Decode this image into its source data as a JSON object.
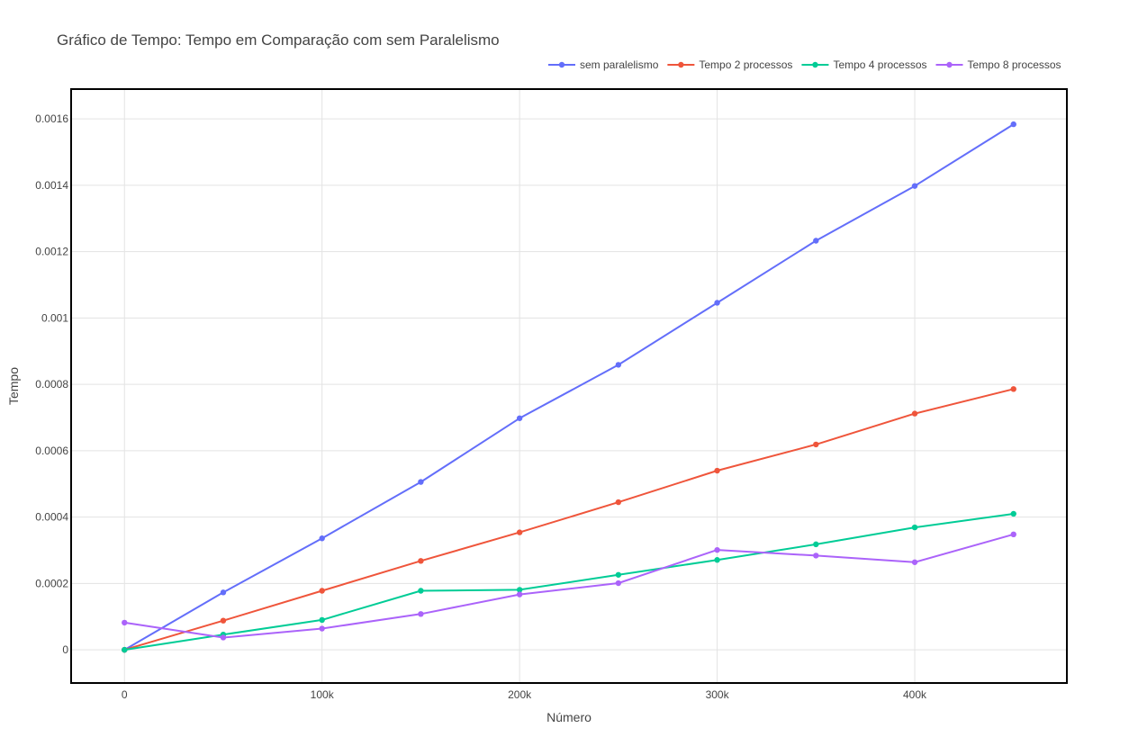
{
  "chart_data": {
    "type": "line",
    "title": "Gráfico de Tempo: Tempo em Comparação com sem Paralelismo",
    "xlabel": "Número",
    "ylabel": "Tempo",
    "x": [
      0,
      50000,
      100000,
      150000,
      200000,
      250000,
      300000,
      350000,
      400000,
      450000
    ],
    "xlim": [
      -27000,
      477000
    ],
    "ylim": [
      -0.0001,
      0.00169
    ],
    "x_ticks": [
      {
        "value": 0,
        "label": "0"
      },
      {
        "value": 100000,
        "label": "100k"
      },
      {
        "value": 200000,
        "label": "200k"
      },
      {
        "value": 300000,
        "label": "300k"
      },
      {
        "value": 400000,
        "label": "400k"
      }
    ],
    "y_ticks": [
      {
        "value": 0,
        "label": "0"
      },
      {
        "value": 0.0002,
        "label": "0.0002"
      },
      {
        "value": 0.0004,
        "label": "0.0004"
      },
      {
        "value": 0.0006,
        "label": "0.0006"
      },
      {
        "value": 0.0008,
        "label": "0.0008"
      },
      {
        "value": 0.001,
        "label": "0.001"
      },
      {
        "value": 0.0012,
        "label": "0.0012"
      },
      {
        "value": 0.0014,
        "label": "0.0014"
      },
      {
        "value": 0.0016,
        "label": "0.0016"
      }
    ],
    "grid": true,
    "legend_position": "top-right",
    "series": [
      {
        "name": "sem paralelismo",
        "color": "#636efa",
        "values": [
          0.0,
          0.000173,
          0.000336,
          0.000506,
          0.000698,
          0.000859,
          0.001046,
          0.001233,
          0.001398,
          0.001584
        ]
      },
      {
        "name": "Tempo 2 processos",
        "color": "#ef553b",
        "values": [
          0.0,
          8.8e-05,
          0.000178,
          0.000268,
          0.000354,
          0.000445,
          0.00054,
          0.000619,
          0.000712,
          0.000786
        ]
      },
      {
        "name": "Tempo 4 processos",
        "color": "#00cc96",
        "values": [
          0.0,
          4.6e-05,
          9e-05,
          0.000178,
          0.000181,
          0.000226,
          0.000271,
          0.000318,
          0.000369,
          0.00041
        ]
      },
      {
        "name": "Tempo 8 processos",
        "color": "#ab63fa",
        "values": [
          8.2e-05,
          3.7e-05,
          6.4e-05,
          0.000108,
          0.000167,
          0.000201,
          0.000301,
          0.000284,
          0.000264,
          0.000348
        ]
      }
    ]
  }
}
